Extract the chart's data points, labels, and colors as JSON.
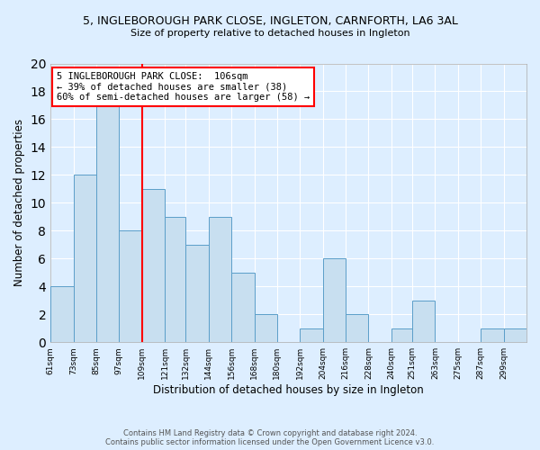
{
  "title": "5, INGLEBOROUGH PARK CLOSE, INGLETON, CARNFORTH, LA6 3AL",
  "subtitle": "Size of property relative to detached houses in Ingleton",
  "xlabel": "Distribution of detached houses by size in Ingleton",
  "ylabel": "Number of detached properties",
  "bin_labels": [
    "61sqm",
    "73sqm",
    "85sqm",
    "97sqm",
    "109sqm",
    "121sqm",
    "132sqm",
    "144sqm",
    "156sqm",
    "168sqm",
    "180sqm",
    "192sqm",
    "204sqm",
    "216sqm",
    "228sqm",
    "240sqm",
    "251sqm",
    "263sqm",
    "275sqm",
    "287sqm",
    "299sqm"
  ],
  "bin_edges": [
    61,
    73,
    85,
    97,
    109,
    121,
    132,
    144,
    156,
    168,
    180,
    192,
    204,
    216,
    228,
    240,
    251,
    263,
    275,
    287,
    299,
    311
  ],
  "counts": [
    4,
    12,
    17,
    8,
    11,
    9,
    7,
    9,
    5,
    2,
    0,
    1,
    6,
    2,
    0,
    1,
    3,
    0,
    0,
    1,
    1
  ],
  "property_size": 106,
  "bar_facecolor": "#c8dff0",
  "bar_edgecolor": "#5b9ec9",
  "redline_x": 109,
  "annotation_line1": "5 INGLEBOROUGH PARK CLOSE:  106sqm",
  "annotation_line2": "← 39% of detached houses are smaller (38)",
  "annotation_line3": "60% of semi-detached houses are larger (58) →",
  "annotation_box_edgecolor": "red",
  "annotation_fontsize": 7.5,
  "ylim": [
    0,
    20
  ],
  "yticks": [
    0,
    2,
    4,
    6,
    8,
    10,
    12,
    14,
    16,
    18,
    20
  ],
  "background_color": "#ddeeff",
  "axes_facecolor": "#ddeeff",
  "grid_color": "#ffffff",
  "title_fontsize": 9,
  "subtitle_fontsize": 8,
  "footer_line1": "Contains HM Land Registry data © Crown copyright and database right 2024.",
  "footer_line2": "Contains public sector information licensed under the Open Government Licence v3.0.",
  "footer_fontsize": 6
}
